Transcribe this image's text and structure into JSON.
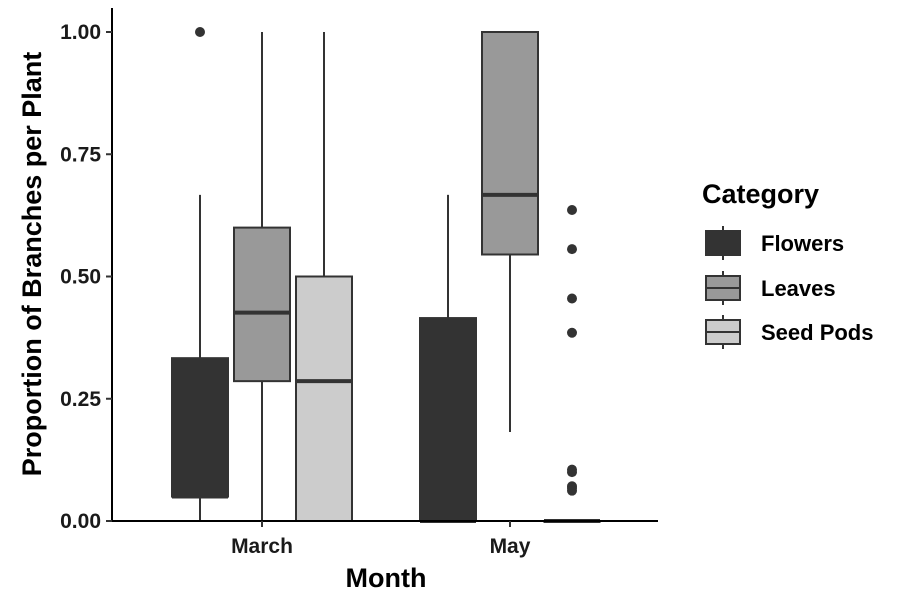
{
  "chart_data": {
    "type": "boxplot",
    "xlabel": "Month",
    "ylabel": "Proportion of Branches per Plant",
    "ylim": [
      0,
      1
    ],
    "yticks": [
      "0.00",
      "0.25",
      "0.50",
      "0.75",
      "1.00"
    ],
    "yticks_values": [
      0,
      0.25,
      0.5,
      0.75,
      1.0
    ],
    "categories": [
      "March",
      "May"
    ],
    "legend": {
      "title": "Category",
      "position": "right"
    },
    "series": [
      {
        "name": "Flowers",
        "color": "#333333",
        "boxes": [
          {
            "category": "March",
            "whisker_low": 0.0,
            "q1": 0.05,
            "median": 0.05,
            "q3": 0.333,
            "whisker_high": 0.667,
            "outliers": [
              1.0
            ]
          },
          {
            "category": "May",
            "whisker_low": 0.0,
            "q1": 0.0,
            "median": 0.0,
            "q3": 0.415,
            "whisker_high": 0.667,
            "outliers": []
          }
        ]
      },
      {
        "name": "Leaves",
        "color": "#999999",
        "boxes": [
          {
            "category": "March",
            "whisker_low": 0.0,
            "q1": 0.286,
            "median": 0.426,
            "q3": 0.6,
            "whisker_high": 1.0,
            "outliers": []
          },
          {
            "category": "May",
            "whisker_low": 0.182,
            "q1": 0.545,
            "median": 0.667,
            "q3": 1.0,
            "whisker_high": 1.0,
            "outliers": []
          }
        ]
      },
      {
        "name": "Seed Pods",
        "color": "#cccccc",
        "boxes": [
          {
            "category": "March",
            "whisker_low": 0.0,
            "q1": 0.0,
            "median": 0.286,
            "q3": 0.5,
            "whisker_high": 1.0,
            "outliers": []
          },
          {
            "category": "May",
            "whisker_low": 0.0,
            "q1": 0.0,
            "median": 0.0,
            "q3": 0.0,
            "whisker_high": 0.0,
            "outliers": [
              0.636,
              0.556,
              0.455,
              0.385,
              0.105,
              0.1,
              0.071,
              0.067,
              0.062
            ]
          }
        ]
      }
    ]
  }
}
